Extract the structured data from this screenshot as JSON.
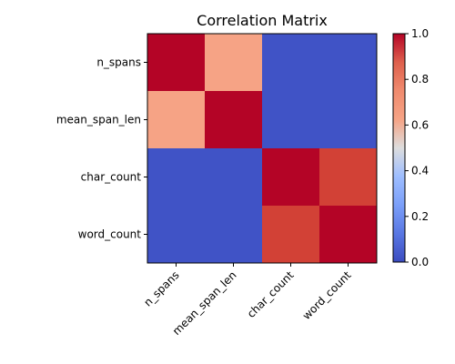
{
  "chart_data": {
    "type": "heatmap",
    "title": "Correlation Matrix",
    "x_labels": [
      "n_spans",
      "mean_span_len",
      "char_count",
      "word_count"
    ],
    "y_labels": [
      "n_spans",
      "mean_span_len",
      "char_count",
      "word_count"
    ],
    "values": [
      [
        1.0,
        0.69,
        0.02,
        0.02
      ],
      [
        0.69,
        1.0,
        0.02,
        0.02
      ],
      [
        0.02,
        0.02,
        1.0,
        0.92
      ],
      [
        0.02,
        0.02,
        0.92,
        1.0
      ]
    ],
    "colormap": "coolwarm",
    "colorbar": {
      "range": [
        0.0,
        1.0
      ],
      "ticks": [
        "0.0",
        "0.2",
        "0.4",
        "0.6",
        "0.8",
        "1.0"
      ]
    }
  }
}
